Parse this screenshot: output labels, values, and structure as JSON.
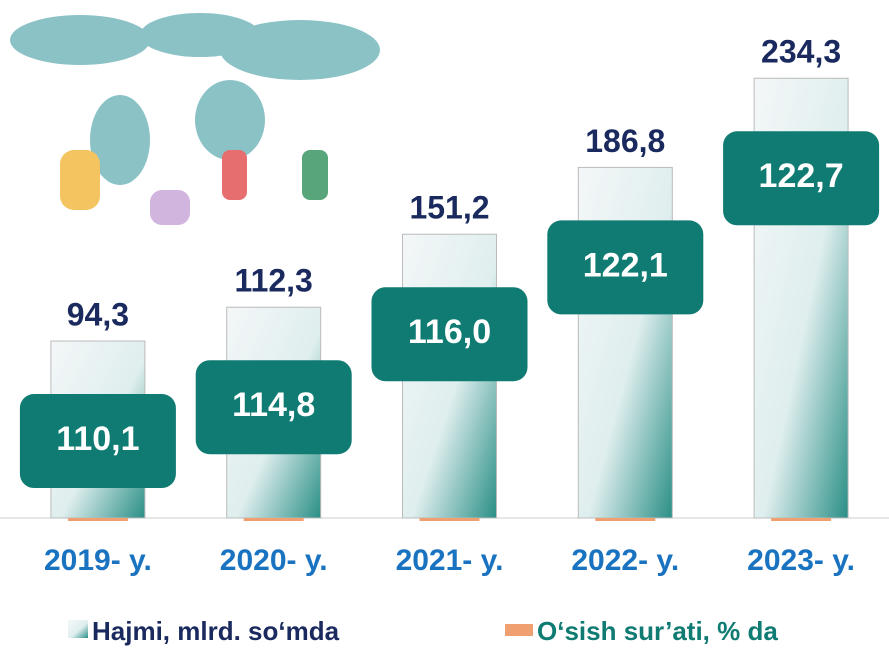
{
  "chart_data": {
    "type": "bar",
    "categories": [
      "2019- y.",
      "2020- y.",
      "2021- y.",
      "2022- y.",
      "2023- y."
    ],
    "ylim": [
      0,
      276
    ],
    "series": [
      {
        "name": "Hajmi, mlrd. so‘mda",
        "color": "#2a8f86",
        "values": [
          94.3,
          112.3,
          151.2,
          186.8,
          234.3
        ],
        "value_labels": [
          "94,3",
          "112,3",
          "151,2",
          "186,8",
          "234,3"
        ]
      },
      {
        "name": "O‘sish sur’ati, % da",
        "color": "#f0a070",
        "label_box_color": "#0f7b72",
        "values": [
          110.1,
          114.8,
          116.0,
          122.1,
          122.7
        ],
        "value_labels": [
          "110,1",
          "114,8",
          "116,0",
          "122,1",
          "122,7"
        ]
      }
    ]
  }
}
